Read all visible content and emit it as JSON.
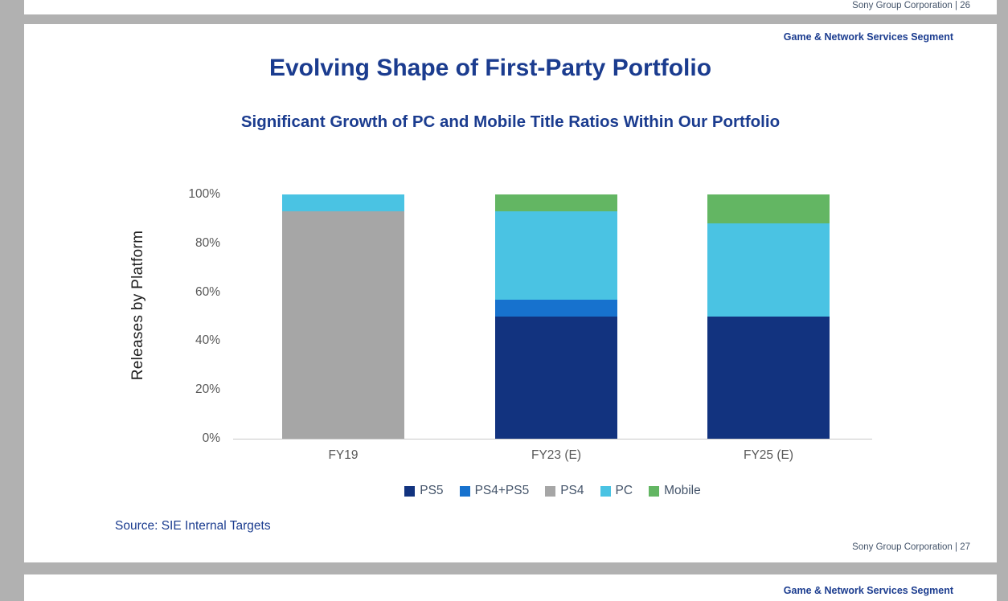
{
  "prev_slide": {
    "footer": "Sony Group Corporation  |  26"
  },
  "slide": {
    "segment_label": "Game & Network Services Segment",
    "title": "Evolving Shape of First-Party Portfolio",
    "subtitle": "Significant Growth of PC and Mobile Title Ratios Within Our Portfolio",
    "source": "Source: SIE Internal Targets",
    "footer": "Sony Group Corporation  |  27"
  },
  "next_slide": {
    "segment_label": "Game & Network Services Segment"
  },
  "chart_data": {
    "type": "bar",
    "stacked": true,
    "percent": true,
    "title": "Significant Growth of PC and Mobile Title Ratios Within Our Portfolio",
    "ylabel": "Releases by Platform",
    "xlabel": "",
    "categories": [
      "FY19",
      "FY23 (E)",
      "FY25 (E)"
    ],
    "series": [
      {
        "name": "PS5",
        "color": "#12337f",
        "values": [
          0,
          50,
          50
        ]
      },
      {
        "name": "PS4+PS5",
        "color": "#1772ce",
        "values": [
          0,
          7,
          0
        ]
      },
      {
        "name": "PS4",
        "color": "#a6a6a6",
        "values": [
          93,
          0,
          0
        ]
      },
      {
        "name": "PC",
        "color": "#4ac3e3",
        "values": [
          7,
          36,
          38
        ]
      },
      {
        "name": "Mobile",
        "color": "#63b663",
        "values": [
          0,
          7,
          12
        ]
      }
    ],
    "yticks": [
      "0%",
      "20%",
      "40%",
      "60%",
      "80%",
      "100%"
    ],
    "ylim": [
      0,
      100
    ],
    "grid": false,
    "legend_position": "bottom"
  }
}
